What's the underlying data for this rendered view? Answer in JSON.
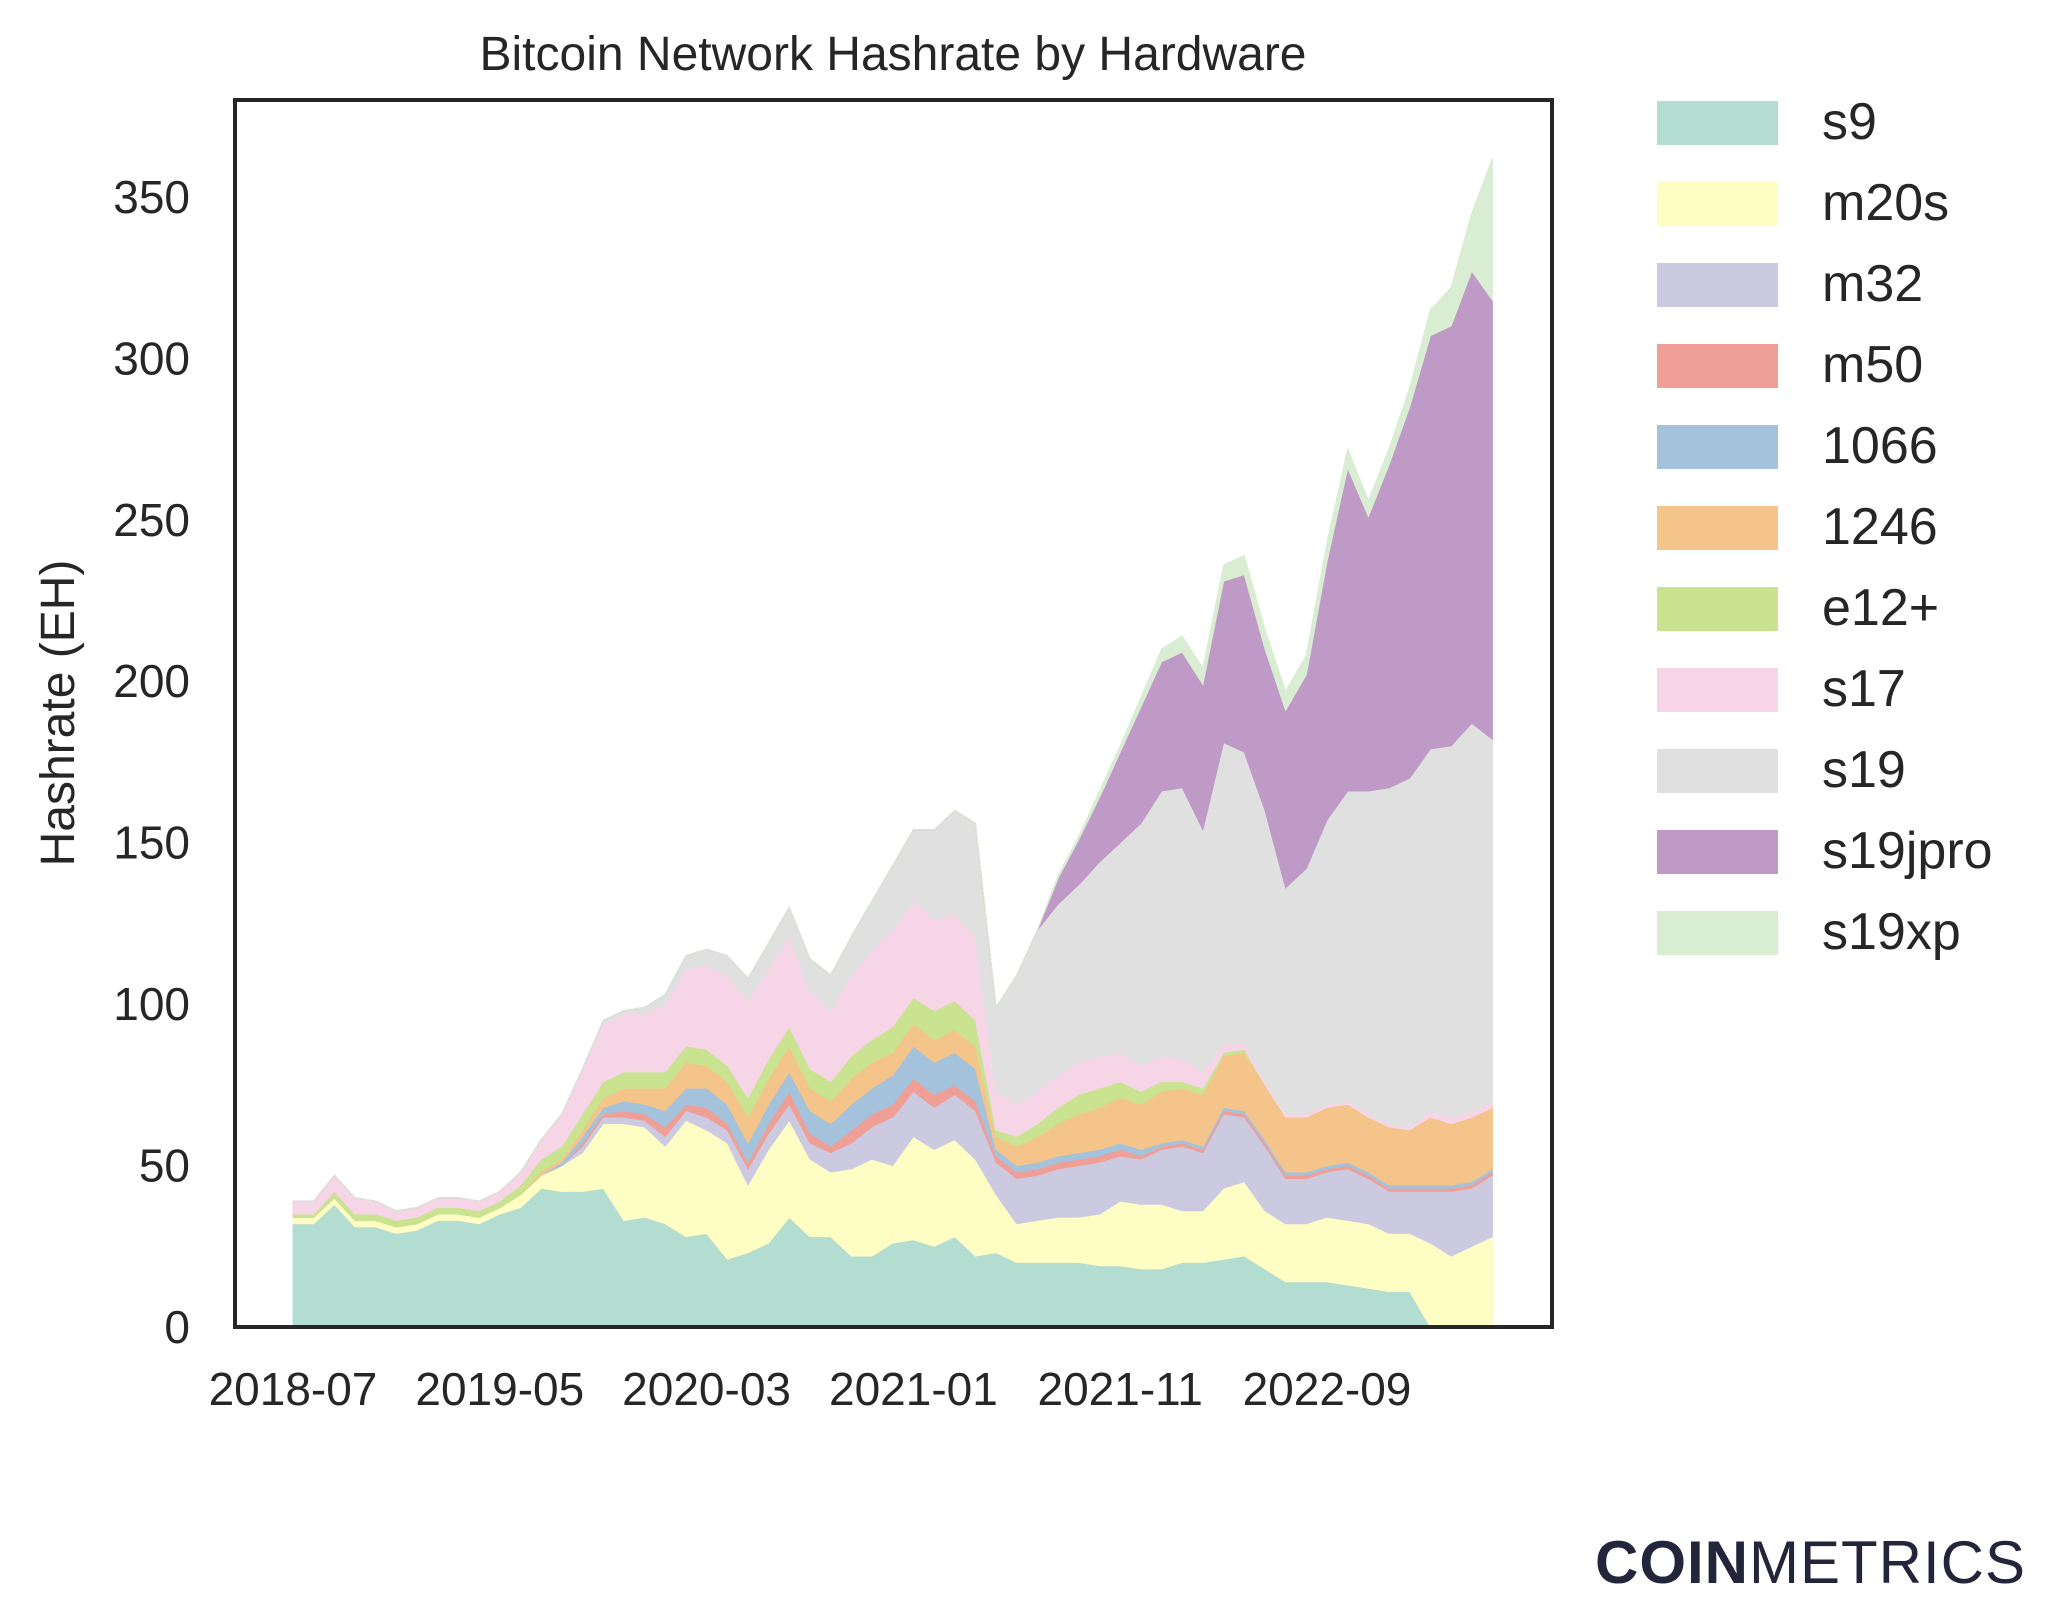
{
  "chart_data": {
    "type": "area",
    "stacked": true,
    "title": "Bitcoin Network Hashrate by Hardware",
    "xlabel": "",
    "ylabel": "Hashrate (EH)",
    "ylim": [
      0,
      380
    ],
    "yticks": [
      0,
      50,
      100,
      150,
      200,
      250,
      300,
      350
    ],
    "xtick_labels": [
      "2018-07",
      "2019-05",
      "2020-03",
      "2021-01",
      "2021-11",
      "2022-09"
    ],
    "x_start": "2018-07",
    "legend_position": "right",
    "grid": false,
    "x": [
      "2018-07",
      "2018-08",
      "2018-09",
      "2018-10",
      "2018-11",
      "2018-12",
      "2019-01",
      "2019-02",
      "2019-03",
      "2019-04",
      "2019-05",
      "2019-06",
      "2019-07",
      "2019-08",
      "2019-09",
      "2019-10",
      "2019-11",
      "2019-12",
      "2020-01",
      "2020-02",
      "2020-03",
      "2020-04",
      "2020-05",
      "2020-06",
      "2020-07",
      "2020-08",
      "2020-09",
      "2020-10",
      "2020-11",
      "2020-12",
      "2021-01",
      "2021-02",
      "2021-03",
      "2021-04",
      "2021-05",
      "2021-06",
      "2021-07",
      "2021-08",
      "2021-09",
      "2021-10",
      "2021-11",
      "2021-12",
      "2022-01",
      "2022-02",
      "2022-03",
      "2022-04",
      "2022-05",
      "2022-06",
      "2022-07",
      "2022-08",
      "2022-09",
      "2022-10",
      "2022-11",
      "2022-12",
      "2023-01",
      "2023-02",
      "2023-03",
      "2023-04",
      "2023-05"
    ],
    "series": [
      {
        "name": "s9",
        "color": "#b3ddd1",
        "values": [
          32,
          32,
          38,
          31,
          31,
          29,
          30,
          33,
          33,
          32,
          35,
          37,
          43,
          42,
          42,
          43,
          33,
          34,
          32,
          28,
          29,
          21,
          23,
          26,
          34,
          28,
          28,
          22,
          22,
          26,
          27,
          25,
          28,
          22,
          23,
          20,
          20,
          20,
          20,
          19,
          19,
          18,
          18,
          20,
          20,
          21,
          22,
          18,
          14,
          14,
          14,
          13,
          12,
          11,
          11,
          0,
          0,
          0,
          0
        ]
      },
      {
        "name": "m20s",
        "color": "#fdfdc4",
        "values": [
          2,
          2,
          2,
          2,
          2,
          2,
          2,
          2,
          2,
          2,
          2,
          4,
          4,
          8,
          12,
          20,
          30,
          28,
          24,
          36,
          32,
          36,
          21,
          29,
          30,
          24,
          20,
          27,
          30,
          24,
          32,
          30,
          30,
          30,
          18,
          12,
          13,
          14,
          14,
          16,
          20,
          20,
          20,
          16,
          16,
          22,
          23,
          18,
          18,
          18,
          20,
          20,
          20,
          18,
          18,
          26,
          22,
          25,
          28
        ]
      },
      {
        "name": "m32",
        "color": "#cccae1",
        "values": [
          0,
          0,
          0,
          0,
          0,
          0,
          0,
          0,
          0,
          0,
          0,
          0,
          0,
          0,
          2,
          2,
          2,
          2,
          3,
          3,
          4,
          4,
          5,
          5,
          5,
          5,
          6,
          8,
          10,
          15,
          14,
          13,
          14,
          15,
          10,
          14,
          14,
          15,
          16,
          16,
          14,
          14,
          17,
          20,
          18,
          23,
          20,
          20,
          14,
          14,
          14,
          16,
          14,
          13,
          13,
          16,
          20,
          18,
          19
        ]
      },
      {
        "name": "m50",
        "color": "#ef9f96",
        "values": [
          0,
          0,
          0,
          0,
          0,
          0,
          0,
          0,
          0,
          0,
          0,
          0,
          0,
          0,
          1,
          1,
          2,
          2,
          3,
          2,
          3,
          2,
          2,
          3,
          4,
          3,
          2,
          4,
          4,
          4,
          4,
          4,
          3,
          3,
          2,
          2,
          2,
          2,
          2,
          2,
          2,
          1,
          1,
          1,
          1,
          1,
          1,
          1,
          1,
          1,
          1,
          1,
          1,
          1,
          1,
          1,
          1,
          1,
          1
        ]
      },
      {
        "name": "1066",
        "color": "#a4c2dc",
        "values": [
          0,
          0,
          0,
          0,
          0,
          0,
          0,
          0,
          0,
          0,
          0,
          0,
          0,
          1,
          2,
          2,
          3,
          3,
          5,
          5,
          6,
          6,
          6,
          6,
          6,
          7,
          7,
          8,
          8,
          9,
          10,
          10,
          10,
          10,
          2,
          2,
          2,
          2,
          2,
          2,
          2,
          2,
          1,
          1,
          1,
          1,
          1,
          1,
          1,
          1,
          1,
          1,
          1,
          1,
          1,
          1,
          1,
          1,
          1
        ]
      },
      {
        "name": "1246",
        "color": "#f4c48b",
        "values": [
          0,
          0,
          0,
          0,
          0,
          0,
          0,
          0,
          0,
          0,
          0,
          0,
          1,
          1,
          2,
          3,
          4,
          5,
          7,
          8,
          7,
          7,
          8,
          8,
          8,
          7,
          7,
          8,
          8,
          7,
          7,
          7,
          7,
          7,
          4,
          6,
          8,
          10,
          12,
          13,
          14,
          14,
          16,
          16,
          16,
          16,
          18,
          17,
          17,
          17,
          18,
          18,
          17,
          18,
          17,
          21,
          19,
          20,
          19
        ]
      },
      {
        "name": "e12+",
        "color": "#c9e390",
        "values": [
          1,
          1,
          2,
          2,
          2,
          2,
          2,
          2,
          2,
          2,
          2,
          3,
          4,
          4,
          5,
          5,
          5,
          5,
          5,
          5,
          5,
          5,
          6,
          6,
          6,
          6,
          6,
          7,
          7,
          8,
          8,
          9,
          9,
          8,
          2,
          3,
          4,
          5,
          6,
          6,
          5,
          4,
          3,
          2,
          2,
          1,
          1,
          0,
          0,
          0,
          0,
          0,
          0,
          0,
          0,
          0,
          0,
          0,
          0
        ]
      },
      {
        "name": "s17",
        "color": "#f6d5e6",
        "values": [
          4,
          4,
          5,
          5,
          4,
          3,
          3,
          3,
          3,
          3,
          3,
          4,
          6,
          10,
          14,
          18,
          18,
          18,
          21,
          24,
          26,
          28,
          30,
          28,
          28,
          24,
          22,
          25,
          28,
          30,
          30,
          28,
          27,
          26,
          12,
          10,
          10,
          10,
          10,
          10,
          9,
          8,
          8,
          7,
          5,
          3,
          2,
          1,
          1,
          1,
          1,
          1,
          1,
          1,
          1,
          2,
          2,
          2,
          2
        ]
      },
      {
        "name": "s19",
        "color": "#e0e0e0",
        "values": [
          0,
          0,
          0,
          0,
          0,
          0,
          0,
          0,
          0,
          0,
          0,
          0,
          0,
          0,
          0,
          1,
          1,
          2,
          3,
          4,
          5,
          6,
          7,
          8,
          9,
          10,
          11,
          12,
          15,
          20,
          22,
          28,
          32,
          35,
          26,
          40,
          50,
          53,
          55,
          60,
          65,
          75,
          82,
          84,
          75,
          93,
          90,
          84,
          70,
          76,
          88,
          96,
          100,
          104,
          108,
          112,
          115,
          120,
          112
        ]
      },
      {
        "name": "s19jpro",
        "color": "#c09ac7",
        "values": [
          0,
          0,
          0,
          0,
          0,
          0,
          0,
          0,
          0,
          0,
          0,
          0,
          0,
          0,
          0,
          0,
          0,
          0,
          0,
          0,
          0,
          0,
          0,
          0,
          0,
          0,
          0,
          0,
          0,
          0,
          0,
          0,
          0,
          0,
          0,
          0,
          0,
          8,
          14,
          20,
          28,
          36,
          40,
          42,
          45,
          50,
          55,
          50,
          55,
          60,
          80,
          100,
          85,
          100,
          115,
          128,
          130,
          140,
          136
        ]
      },
      {
        "name": "s19xp",
        "color": "#d9edd3",
        "values": [
          0,
          0,
          0,
          0,
          0,
          0,
          0,
          0,
          0,
          0,
          0,
          0,
          0,
          0,
          0,
          0,
          0,
          0,
          0,
          0,
          0,
          0,
          0,
          0,
          0,
          0,
          0,
          0,
          0,
          0,
          0,
          0,
          0,
          0,
          0,
          0,
          0,
          1,
          1,
          2,
          2,
          3,
          4,
          5,
          5,
          5,
          6,
          6,
          6,
          6,
          6,
          6,
          5,
          5,
          6,
          8,
          12,
          18,
          44
        ]
      }
    ]
  },
  "branding": {
    "logo_bold": "COIN",
    "logo_light": "METRICS"
  }
}
